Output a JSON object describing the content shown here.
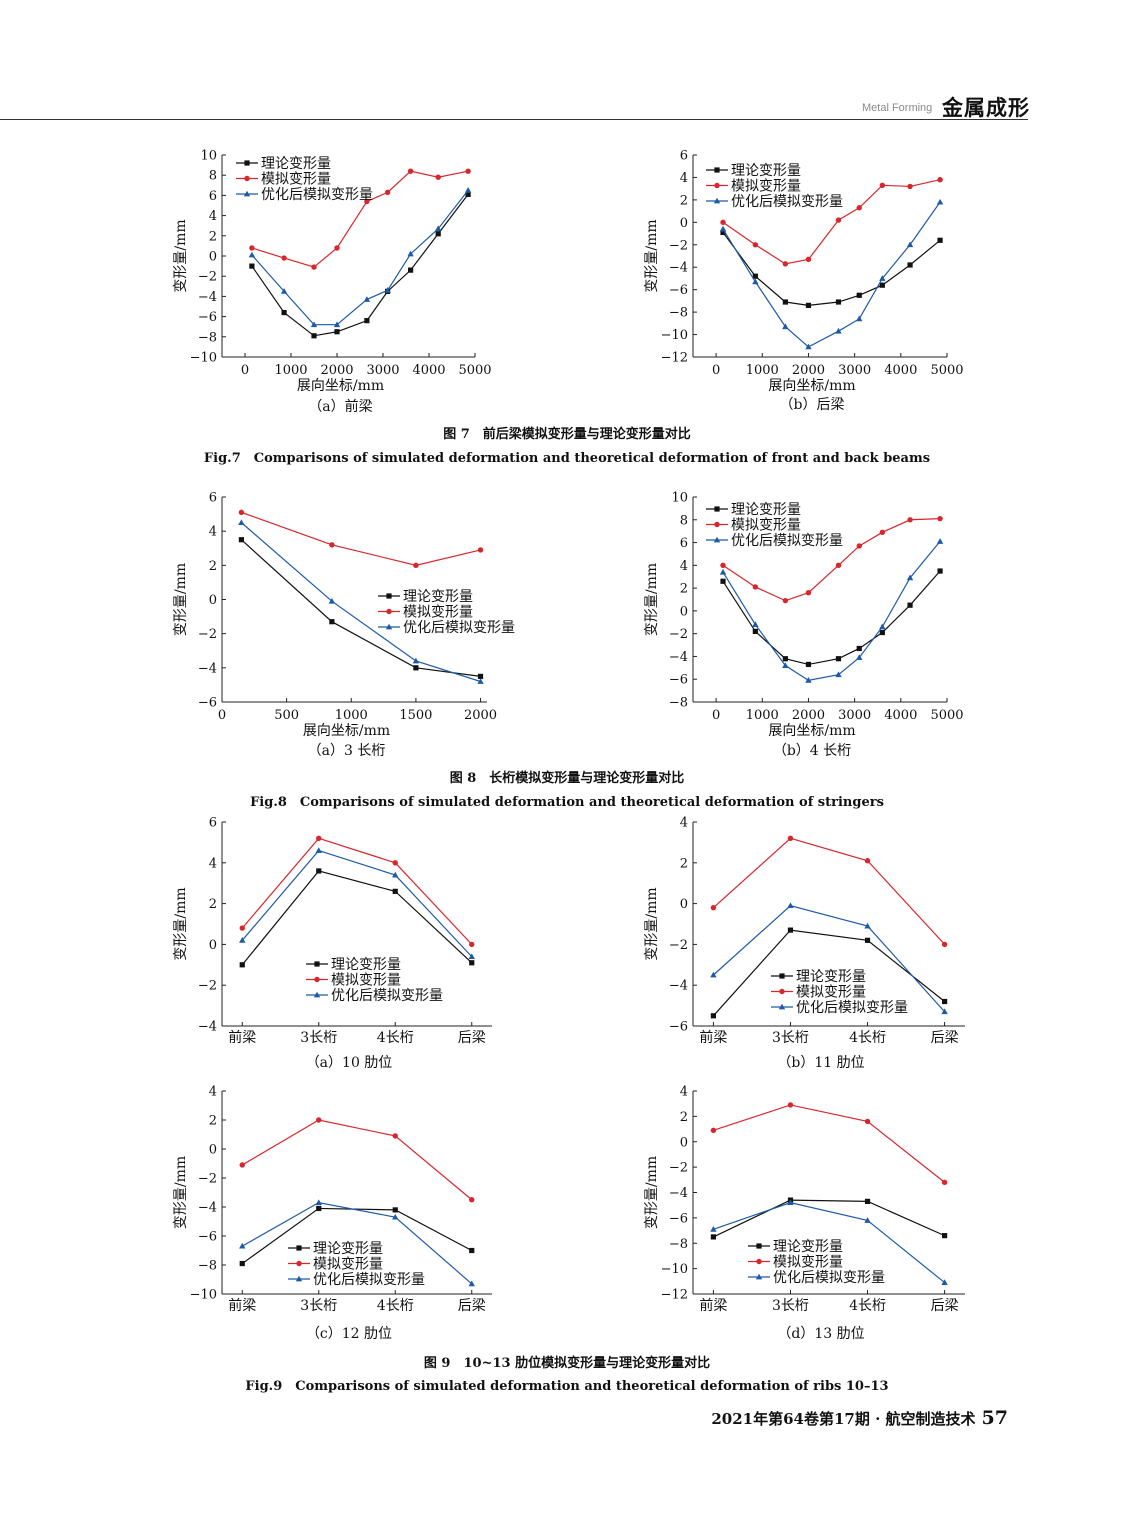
{
  "header": {
    "en": "Metal Forming",
    "cn": "金属成形"
  },
  "figures": [
    {
      "cn": "图 7　前后梁模拟变形量与理论变形量对比",
      "en": "Fig.7　Comparisons of simulated deformation and theoretical deformation of front and back beams"
    },
    {
      "cn": "图 8　长桁模拟变形量与理论变形量对比",
      "en": "Fig.8　Comparisons of simulated deformation and theoretical deformation of stringers"
    },
    {
      "cn": "图 9　10~13 肋位模拟变形量与理论变形量对比",
      "en": "Fig.9　Comparisons of simulated deformation and theoretical deformation of ribs 10–13"
    }
  ],
  "footer": {
    "text": "2021年第64卷第17期 · 航空制造技术",
    "page": "57"
  },
  "chart_data": [
    {
      "type": "line",
      "id": "a7",
      "caption": "（a）前梁",
      "xlabel": "展向坐标/mm",
      "ylabel": "变形量/mm",
      "xlim": [
        -500,
        5000
      ],
      "ylim": [
        -10,
        10
      ],
      "xticks": [
        0,
        1000,
        2000,
        3000,
        4000,
        5000
      ],
      "yticks": [
        -10,
        -8,
        -6,
        -4,
        -2,
        0,
        2,
        4,
        6,
        8,
        10
      ],
      "x": [
        150,
        850,
        1500,
        2000,
        2650,
        3100,
        3600,
        4200,
        4850
      ],
      "series": [
        {
          "name": "理论变形量",
          "color": "#111111",
          "marker": "square",
          "values": [
            -1,
            -5.6,
            -7.9,
            -7.5,
            -6.4,
            -3.5,
            -1.4,
            2.2,
            6.1
          ]
        },
        {
          "name": "模拟变形量",
          "color": "#d9262c",
          "marker": "circle",
          "values": [
            0.8,
            -0.2,
            -1.1,
            0.8,
            5.4,
            6.3,
            8.4,
            7.8,
            8.4
          ]
        },
        {
          "name": "优化后模拟变形量",
          "color": "#1f5aa6",
          "marker": "triangle",
          "values": [
            0.1,
            -3.5,
            -6.8,
            -6.8,
            -4.3,
            -3.4,
            0.2,
            2.7,
            6.5
          ]
        }
      ]
    },
    {
      "type": "line",
      "id": "b7",
      "caption": "（b）后梁",
      "xlabel": "展向坐标/mm",
      "ylabel": "变形量/mm",
      "xlim": [
        -500,
        5000
      ],
      "ylim": [
        -12,
        6
      ],
      "xticks": [
        0,
        1000,
        2000,
        3000,
        4000,
        5000
      ],
      "yticks": [
        -12,
        -10,
        -8,
        -6,
        -4,
        -2,
        0,
        2,
        4,
        6
      ],
      "x": [
        150,
        850,
        1500,
        2000,
        2650,
        3100,
        3600,
        4200,
        4850
      ],
      "series": [
        {
          "name": "理论变形量",
          "color": "#111111",
          "marker": "square",
          "values": [
            -0.9,
            -4.8,
            -7.1,
            -7.4,
            -7.1,
            -6.5,
            -5.6,
            -3.8,
            -1.6
          ]
        },
        {
          "name": "模拟变形量",
          "color": "#d9262c",
          "marker": "circle",
          "values": [
            0,
            -2,
            -3.7,
            -3.3,
            0.2,
            1.3,
            3.3,
            3.2,
            3.8
          ]
        },
        {
          "name": "优化后模拟变形量",
          "color": "#1f5aa6",
          "marker": "triangle",
          "values": [
            -0.6,
            -5.3,
            -9.3,
            -11.1,
            -9.7,
            -8.6,
            -5,
            -2,
            1.8
          ]
        }
      ]
    },
    {
      "type": "line",
      "id": "a8",
      "caption": "（a）3 长桁",
      "xlabel": "展向坐标/mm",
      "ylabel": "变形量/mm",
      "xlim": [
        0,
        2050
      ],
      "ylim": [
        -6,
        6
      ],
      "xticks": [
        0,
        500,
        1000,
        1500,
        2000
      ],
      "yticks": [
        -6,
        -4,
        -2,
        0,
        2,
        4,
        6
      ],
      "x": [
        150,
        850,
        1500,
        2000
      ],
      "series": [
        {
          "name": "理论变形量",
          "color": "#111111",
          "marker": "square",
          "values": [
            3.5,
            -1.3,
            -4,
            -4.5
          ]
        },
        {
          "name": "模拟变形量",
          "color": "#d9262c",
          "marker": "circle",
          "values": [
            5.1,
            3.2,
            2,
            2.9
          ]
        },
        {
          "name": "优化后模拟变形量",
          "color": "#1f5aa6",
          "marker": "triangle",
          "values": [
            4.5,
            -0.1,
            -3.6,
            -4.8
          ]
        }
      ]
    },
    {
      "type": "line",
      "id": "b8",
      "caption": "（b）4 长桁",
      "xlabel": "展向坐标/mm",
      "ylabel": "变形量/mm",
      "xlim": [
        -500,
        5000
      ],
      "ylim": [
        -8,
        10
      ],
      "xticks": [
        0,
        1000,
        2000,
        3000,
        4000,
        5000
      ],
      "yticks": [
        -8,
        -6,
        -4,
        -2,
        0,
        2,
        4,
        6,
        8,
        10
      ],
      "x": [
        150,
        850,
        1500,
        2000,
        2650,
        3100,
        3600,
        4200,
        4850
      ],
      "series": [
        {
          "name": "理论变形量",
          "color": "#111111",
          "marker": "square",
          "values": [
            2.6,
            -1.8,
            -4.2,
            -4.7,
            -4.2,
            -3.3,
            -1.9,
            0.5,
            3.5
          ]
        },
        {
          "name": "模拟变形量",
          "color": "#d9262c",
          "marker": "circle",
          "values": [
            4,
            2.1,
            0.9,
            1.6,
            4,
            5.7,
            6.9,
            8,
            8.1
          ]
        },
        {
          "name": "优化后模拟变形量",
          "color": "#1f5aa6",
          "marker": "triangle",
          "values": [
            3.4,
            -1.2,
            -4.8,
            -6.1,
            -5.6,
            -4.1,
            -1.4,
            2.9,
            6.1
          ]
        }
      ]
    },
    {
      "type": "line",
      "id": "a9",
      "caption": "（a）10 肋位",
      "xlabel": "",
      "ylabel": "变形量/mm",
      "categories": [
        "前梁",
        "3长桁",
        "4长桁",
        "后梁"
      ],
      "ylim": [
        -4,
        6
      ],
      "yticks": [
        -4,
        -2,
        0,
        2,
        4,
        6
      ],
      "series": [
        {
          "name": "理论变形量",
          "color": "#111111",
          "marker": "square",
          "values": [
            -1,
            3.6,
            2.6,
            -0.9
          ]
        },
        {
          "name": "模拟变形量",
          "color": "#d9262c",
          "marker": "circle",
          "values": [
            0.8,
            5.2,
            4,
            0
          ]
        },
        {
          "name": "优化后模拟变形量",
          "color": "#1f5aa6",
          "marker": "triangle",
          "values": [
            0.2,
            4.6,
            3.4,
            -0.6
          ]
        }
      ]
    },
    {
      "type": "line",
      "id": "b9",
      "caption": "（b）11 肋位",
      "xlabel": "",
      "ylabel": "变形量/mm",
      "categories": [
        "前梁",
        "3长桁",
        "4长桁",
        "后梁"
      ],
      "ylim": [
        -6,
        4
      ],
      "yticks": [
        -6,
        -4,
        -2,
        0,
        2,
        4
      ],
      "series": [
        {
          "name": "理论变形量",
          "color": "#111111",
          "marker": "square",
          "values": [
            -5.5,
            -1.3,
            -1.8,
            -4.8
          ]
        },
        {
          "name": "模拟变形量",
          "color": "#d9262c",
          "marker": "circle",
          "values": [
            -0.2,
            3.2,
            2.1,
            -2
          ]
        },
        {
          "name": "优化后模拟变形量",
          "color": "#1f5aa6",
          "marker": "triangle",
          "values": [
            -3.5,
            -0.1,
            -1.1,
            -5.3
          ]
        }
      ]
    },
    {
      "type": "line",
      "id": "c9",
      "caption": "（c）12 肋位",
      "xlabel": "",
      "ylabel": "变形量/mm",
      "categories": [
        "前梁",
        "3长桁",
        "4长桁",
        "后梁"
      ],
      "ylim": [
        -10,
        4
      ],
      "yticks": [
        -10,
        -8,
        -6,
        -4,
        -2,
        0,
        2,
        4
      ],
      "series": [
        {
          "name": "理论变形量",
          "color": "#111111",
          "marker": "square",
          "values": [
            -7.9,
            -4.1,
            -4.2,
            -7
          ]
        },
        {
          "name": "模拟变形量",
          "color": "#d9262c",
          "marker": "circle",
          "values": [
            -1.1,
            2,
            0.9,
            -3.5
          ]
        },
        {
          "name": "优化后模拟变形量",
          "color": "#1f5aa6",
          "marker": "triangle",
          "values": [
            -6.7,
            -3.7,
            -4.7,
            -9.3
          ]
        }
      ]
    },
    {
      "type": "line",
      "id": "d9",
      "caption": "（d）13 肋位",
      "xlabel": "",
      "ylabel": "变形量/mm",
      "categories": [
        "前梁",
        "3长桁",
        "4长桁",
        "后梁"
      ],
      "ylim": [
        -12,
        4
      ],
      "yticks": [
        -12,
        -10,
        -8,
        -6,
        -4,
        -2,
        0,
        2,
        4
      ],
      "series": [
        {
          "name": "理论变形量",
          "color": "#111111",
          "marker": "square",
          "values": [
            -7.5,
            -4.6,
            -4.7,
            -7.4
          ]
        },
        {
          "name": "模拟变形量",
          "color": "#d9262c",
          "marker": "circle",
          "values": [
            0.9,
            2.9,
            1.6,
            -3.2
          ]
        },
        {
          "name": "优化后模拟变形量",
          "color": "#1f5aa6",
          "marker": "triangle",
          "values": [
            -6.9,
            -4.8,
            -6.2,
            -11.1
          ]
        }
      ]
    }
  ]
}
